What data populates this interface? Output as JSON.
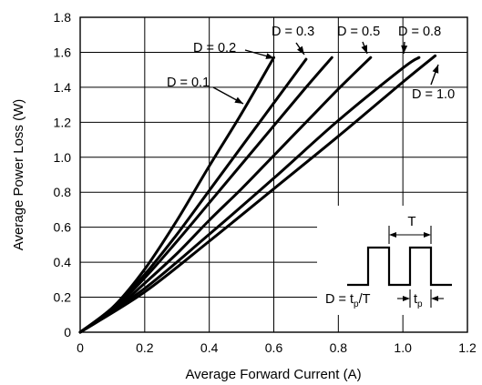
{
  "chart_data": {
    "type": "line",
    "xlabel": "Average Forward Current (A)",
    "ylabel": "Average Power Loss (W)",
    "xlim": [
      0,
      1.2
    ],
    "ylim": [
      0,
      1.8
    ],
    "x_ticks": [
      "0",
      "0.2",
      "0.4",
      "0.6",
      "0.8",
      "1.0",
      "1.2"
    ],
    "y_ticks": [
      "0",
      "0.2",
      "0.4",
      "0.6",
      "0.8",
      "1.0",
      "1.2",
      "1.4",
      "1.6",
      "1.8"
    ],
    "grid": true,
    "series": [
      {
        "name": "D = 0.1",
        "x": [
          0,
          0.1,
          0.2,
          0.3,
          0.4,
          0.5,
          0.6
        ],
        "y": [
          0,
          0.14,
          0.36,
          0.64,
          0.95,
          1.25,
          1.57
        ]
      },
      {
        "name": "D = 0.2",
        "x": [
          0,
          0.1,
          0.2,
          0.3,
          0.4,
          0.5,
          0.6,
          0.7
        ],
        "y": [
          0,
          0.14,
          0.33,
          0.56,
          0.81,
          1.06,
          1.31,
          1.56
        ]
      },
      {
        "name": "D = 0.3",
        "x": [
          0,
          0.1,
          0.2,
          0.3,
          0.4,
          0.5,
          0.6,
          0.7,
          0.78
        ],
        "y": [
          0,
          0.13,
          0.31,
          0.52,
          0.74,
          0.96,
          1.18,
          1.4,
          1.57
        ]
      },
      {
        "name": "D = 0.5",
        "x": [
          0,
          0.1,
          0.2,
          0.3,
          0.4,
          0.5,
          0.6,
          0.7,
          0.8,
          0.9
        ],
        "y": [
          0,
          0.12,
          0.28,
          0.45,
          0.64,
          0.82,
          1.01,
          1.2,
          1.39,
          1.57
        ]
      },
      {
        "name": "D = 0.8",
        "x": [
          0,
          0.2,
          0.4,
          0.6,
          0.8,
          1.0,
          1.05
        ],
        "y": [
          0,
          0.25,
          0.56,
          0.88,
          1.21,
          1.51,
          1.57
        ]
      },
      {
        "name": "D = 1.0",
        "x": [
          0,
          0.2,
          0.4,
          0.6,
          0.8,
          1.0,
          1.1
        ],
        "y": [
          0,
          0.23,
          0.52,
          0.82,
          1.12,
          1.43,
          1.58
        ]
      }
    ],
    "annotations": {
      "inset_period_label": "T",
      "inset_duty_formula": "D = t",
      "inset_duty_sub": "p",
      "inset_duty_suffix": "/T",
      "inset_tp_label": "t",
      "inset_tp_sub": "p"
    }
  }
}
